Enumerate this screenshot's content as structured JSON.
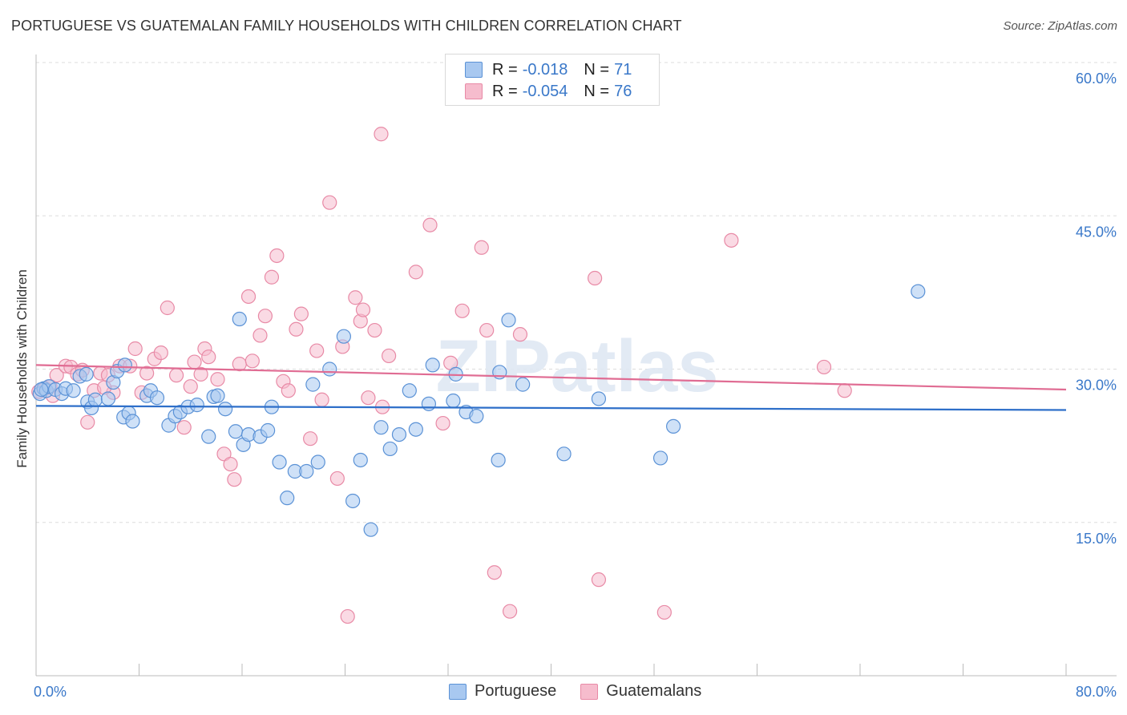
{
  "title": "PORTUGUESE VS GUATEMALAN FAMILY HOUSEHOLDS WITH CHILDREN CORRELATION CHART",
  "source": "Source: ZipAtlas.com",
  "watermark": "ZIPatlas",
  "legend_top": {
    "rows": [
      {
        "r_label": "R =",
        "r_value": "-0.018",
        "n_label": "N =",
        "n_value": "71"
      },
      {
        "r_label": "R =",
        "r_value": "-0.054",
        "n_label": "N =",
        "n_value": "76"
      }
    ]
  },
  "colors": {
    "blue_fill": "#a8c8f0",
    "blue_stroke": "#5b92d6",
    "blue_line": "#2e6fc9",
    "pink_fill": "#f6bccd",
    "pink_stroke": "#e88aa6",
    "pink_line": "#e06c93",
    "axis_label": "#3a78c9",
    "grid": "#dddddd"
  },
  "chart_data": {
    "type": "scatter",
    "title": "PORTUGUESE VS GUATEMALAN FAMILY HOUSEHOLDS WITH CHILDREN CORRELATION CHART",
    "xlabel": "",
    "ylabel": "Family Households with Children",
    "xlim": [
      0,
      80
    ],
    "ylim": [
      0,
      60
    ],
    "x_tick_labels": [
      "0.0%",
      "80.0%"
    ],
    "y_ticks": [
      15,
      30,
      45,
      60
    ],
    "y_tick_labels": [
      "15.0%",
      "30.0%",
      "45.0%",
      "60.0%"
    ],
    "legend": [
      "Portuguese",
      "Guatemalans"
    ],
    "series": [
      {
        "name": "Portuguese",
        "r": -0.018,
        "n": 71,
        "trend": [
          [
            0,
            26.4
          ],
          [
            80,
            26.0
          ]
        ],
        "points": [
          [
            0.3,
            27.6
          ],
          [
            0.6,
            28.1
          ],
          [
            0.8,
            27.9
          ],
          [
            1.0,
            28.3
          ],
          [
            1.5,
            28.0
          ],
          [
            2.0,
            27.6
          ],
          [
            2.3,
            28.1
          ],
          [
            2.9,
            27.9
          ],
          [
            3.4,
            29.3
          ],
          [
            3.9,
            29.5
          ],
          [
            4.0,
            26.8
          ],
          [
            4.3,
            26.2
          ],
          [
            4.6,
            27.0
          ],
          [
            5.6,
            27.1
          ],
          [
            6.0,
            28.7
          ],
          [
            6.3,
            29.8
          ],
          [
            6.8,
            25.3
          ],
          [
            7.2,
            25.7
          ],
          [
            7.5,
            24.9
          ],
          [
            8.6,
            27.4
          ],
          [
            8.9,
            27.9
          ],
          [
            9.4,
            27.2
          ],
          [
            10.3,
            24.5
          ],
          [
            10.8,
            25.4
          ],
          [
            11.2,
            25.8
          ],
          [
            11.8,
            26.3
          ],
          [
            12.5,
            26.5
          ],
          [
            13.4,
            23.4
          ],
          [
            13.8,
            27.3
          ],
          [
            14.1,
            27.4
          ],
          [
            14.7,
            26.1
          ],
          [
            15.5,
            23.9
          ],
          [
            15.8,
            34.9
          ],
          [
            16.1,
            22.6
          ],
          [
            16.5,
            23.6
          ],
          [
            17.4,
            23.4
          ],
          [
            18.0,
            24.0
          ],
          [
            18.3,
            26.3
          ],
          [
            18.9,
            20.9
          ],
          [
            19.5,
            17.4
          ],
          [
            20.1,
            20.0
          ],
          [
            21.0,
            20.0
          ],
          [
            21.5,
            28.5
          ],
          [
            21.9,
            20.9
          ],
          [
            22.8,
            30.0
          ],
          [
            23.9,
            33.2
          ],
          [
            24.6,
            17.1
          ],
          [
            25.2,
            21.1
          ],
          [
            26.0,
            14.3
          ],
          [
            26.8,
            24.3
          ],
          [
            27.5,
            22.2
          ],
          [
            28.2,
            23.6
          ],
          [
            29.0,
            27.9
          ],
          [
            29.5,
            24.1
          ],
          [
            30.5,
            26.6
          ],
          [
            30.8,
            30.4
          ],
          [
            32.4,
            26.9
          ],
          [
            32.6,
            29.5
          ],
          [
            33.4,
            25.8
          ],
          [
            34.2,
            25.4
          ],
          [
            35.9,
            21.1
          ],
          [
            36.0,
            29.7
          ],
          [
            36.7,
            34.8
          ],
          [
            37.8,
            28.5
          ],
          [
            41.0,
            21.7
          ],
          [
            43.7,
            27.1
          ],
          [
            48.5,
            21.3
          ],
          [
            49.5,
            24.4
          ],
          [
            68.5,
            37.6
          ],
          [
            0.4,
            28.0
          ],
          [
            6.9,
            30.4
          ]
        ]
      },
      {
        "name": "Guatemalans",
        "r": -0.054,
        "n": 76,
        "trend": [
          [
            0,
            30.4
          ],
          [
            80,
            28.0
          ]
        ],
        "points": [
          [
            0.2,
            27.8
          ],
          [
            0.7,
            28.1
          ],
          [
            1.1,
            28.3
          ],
          [
            1.6,
            29.4
          ],
          [
            2.3,
            30.3
          ],
          [
            2.7,
            30.2
          ],
          [
            3.2,
            29.5
          ],
          [
            3.6,
            29.9
          ],
          [
            4.0,
            24.8
          ],
          [
            4.5,
            27.9
          ],
          [
            5.0,
            29.6
          ],
          [
            5.6,
            29.4
          ],
          [
            6.0,
            27.7
          ],
          [
            6.5,
            30.3
          ],
          [
            7.3,
            30.3
          ],
          [
            7.7,
            32.0
          ],
          [
            8.2,
            27.7
          ],
          [
            8.6,
            29.6
          ],
          [
            9.2,
            31.0
          ],
          [
            9.7,
            31.6
          ],
          [
            10.2,
            36.0
          ],
          [
            10.9,
            29.4
          ],
          [
            11.5,
            24.3
          ],
          [
            12.0,
            28.3
          ],
          [
            12.8,
            29.5
          ],
          [
            13.1,
            32.0
          ],
          [
            13.4,
            31.2
          ],
          [
            14.1,
            29.0
          ],
          [
            14.6,
            21.7
          ],
          [
            15.1,
            20.7
          ],
          [
            15.4,
            19.2
          ],
          [
            15.8,
            30.5
          ],
          [
            16.5,
            37.1
          ],
          [
            16.8,
            30.8
          ],
          [
            17.4,
            33.3
          ],
          [
            17.8,
            35.2
          ],
          [
            18.3,
            39.0
          ],
          [
            18.7,
            41.1
          ],
          [
            19.2,
            28.8
          ],
          [
            19.6,
            27.9
          ],
          [
            20.2,
            33.9
          ],
          [
            20.6,
            35.4
          ],
          [
            21.3,
            23.2
          ],
          [
            21.8,
            31.8
          ],
          [
            22.2,
            27.0
          ],
          [
            22.8,
            46.3
          ],
          [
            23.4,
            19.3
          ],
          [
            23.8,
            32.2
          ],
          [
            24.2,
            5.8
          ],
          [
            24.8,
            37.0
          ],
          [
            25.2,
            34.7
          ],
          [
            25.4,
            35.8
          ],
          [
            25.8,
            27.2
          ],
          [
            26.3,
            33.8
          ],
          [
            26.8,
            53.0
          ],
          [
            27.4,
            31.3
          ],
          [
            29.5,
            39.5
          ],
          [
            30.6,
            44.1
          ],
          [
            31.6,
            24.7
          ],
          [
            32.2,
            30.6
          ],
          [
            33.1,
            35.7
          ],
          [
            34.6,
            41.9
          ],
          [
            35.0,
            33.8
          ],
          [
            35.6,
            10.1
          ],
          [
            36.8,
            6.3
          ],
          [
            37.6,
            33.4
          ],
          [
            43.4,
            38.9
          ],
          [
            43.7,
            9.4
          ],
          [
            48.8,
            6.2
          ],
          [
            54.0,
            42.6
          ],
          [
            61.2,
            30.2
          ],
          [
            62.8,
            27.9
          ],
          [
            1.3,
            27.4
          ],
          [
            5.3,
            28.2
          ],
          [
            12.3,
            30.7
          ],
          [
            26.9,
            26.3
          ]
        ]
      }
    ]
  }
}
